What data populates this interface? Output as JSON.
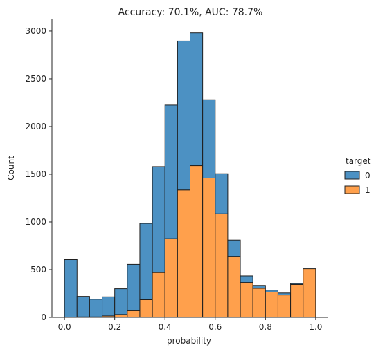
{
  "chart_data": {
    "type": "bar",
    "stacked": true,
    "title": "Accuracy: 70.1%, AUC: 78.7%",
    "xlabel": "probability",
    "ylabel": "Count",
    "xlim": [
      -0.05,
      1.05
    ],
    "ylim": [
      0,
      3130
    ],
    "xticks": [
      "0.0",
      "0.2",
      "0.4",
      "0.6",
      "0.8",
      "1.0"
    ],
    "yticks": [
      "0",
      "500",
      "1000",
      "1500",
      "2000",
      "2500",
      "3000"
    ],
    "bin_width": 0.05,
    "bin_starts": [
      0.0,
      0.05,
      0.1,
      0.15,
      0.2,
      0.25,
      0.3,
      0.35,
      0.4,
      0.45,
      0.5,
      0.55,
      0.6,
      0.65,
      0.7,
      0.75,
      0.8,
      0.85,
      0.9,
      0.95
    ],
    "grid": false,
    "legend": {
      "title": "target",
      "placement": "right"
    },
    "series": [
      {
        "name": "0",
        "color": "#4c91c3",
        "values": [
          605,
          215,
          185,
          200,
          270,
          485,
          800,
          1110,
          1400,
          1560,
          1390,
          820,
          420,
          170,
          70,
          30,
          20,
          20,
          10,
          0
        ]
      },
      {
        "name": "1",
        "color": "#ffa04c",
        "values": [
          0,
          5,
          5,
          15,
          30,
          70,
          185,
          470,
          825,
          1335,
          1590,
          1460,
          1085,
          640,
          365,
          305,
          265,
          235,
          345,
          510
        ]
      }
    ]
  }
}
